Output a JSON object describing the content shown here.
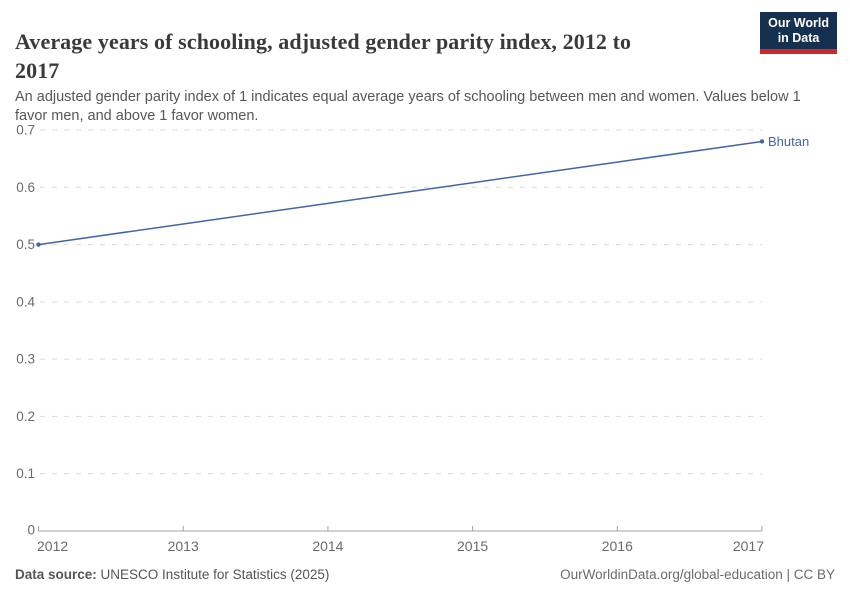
{
  "header": {
    "title_lines": [
      "Average years of schooling, adjusted gender parity index, 2012 to",
      "2017"
    ],
    "subtitle_lines": [
      "An adjusted gender parity index of 1 indicates equal average years of schooling between men and women. Values below 1",
      "favor men, and above 1 favor women."
    ],
    "logo": {
      "line1": "Our World",
      "line2": "in Data"
    }
  },
  "chart_data": {
    "type": "line",
    "title": "Average years of schooling, adjusted gender parity index, 2012 to 2017",
    "xlabel": "",
    "ylabel": "",
    "xlim": [
      2012,
      2017
    ],
    "ylim": [
      0,
      0.7
    ],
    "grid": "horizontal dashed",
    "legend_position": "end-of-line label",
    "x_tick_values": [
      2012,
      2013,
      2014,
      2015,
      2016,
      2017
    ],
    "x_tick_labels": [
      "2012",
      "2013",
      "2014",
      "2015",
      "2016",
      "2017"
    ],
    "y_tick_values": [
      0,
      0.1,
      0.2,
      0.3,
      0.4,
      0.5,
      0.6,
      0.7
    ],
    "y_tick_labels": [
      "0",
      "0.1",
      "0.2",
      "0.3",
      "0.4",
      "0.5",
      "0.6",
      "0.7"
    ],
    "series": [
      {
        "name": "Bhutan",
        "color": "#4266a5",
        "x": [
          2012,
          2013,
          2014,
          2015,
          2016,
          2017
        ],
        "values": [
          0.5,
          0.536,
          0.572,
          0.608,
          0.644,
          0.68
        ],
        "markers": "endpoints"
      }
    ]
  },
  "footer": {
    "source_label": "Data source:",
    "source_text": "UNESCO Institute for Statistics (2025)",
    "attribution": "OurWorldinData.org/global-education | CC BY"
  },
  "colors": {
    "line": "#4266a5",
    "end_label": "#4266a5",
    "grid": "#d9d9d9",
    "axis": "#a3a3a3",
    "tick_label": "#6b6b6b",
    "title": "#3a3a3a",
    "subtitle": "#575757",
    "footer": "#555555",
    "logo_bg": "#16304f",
    "logo_red": "#d0262e"
  }
}
